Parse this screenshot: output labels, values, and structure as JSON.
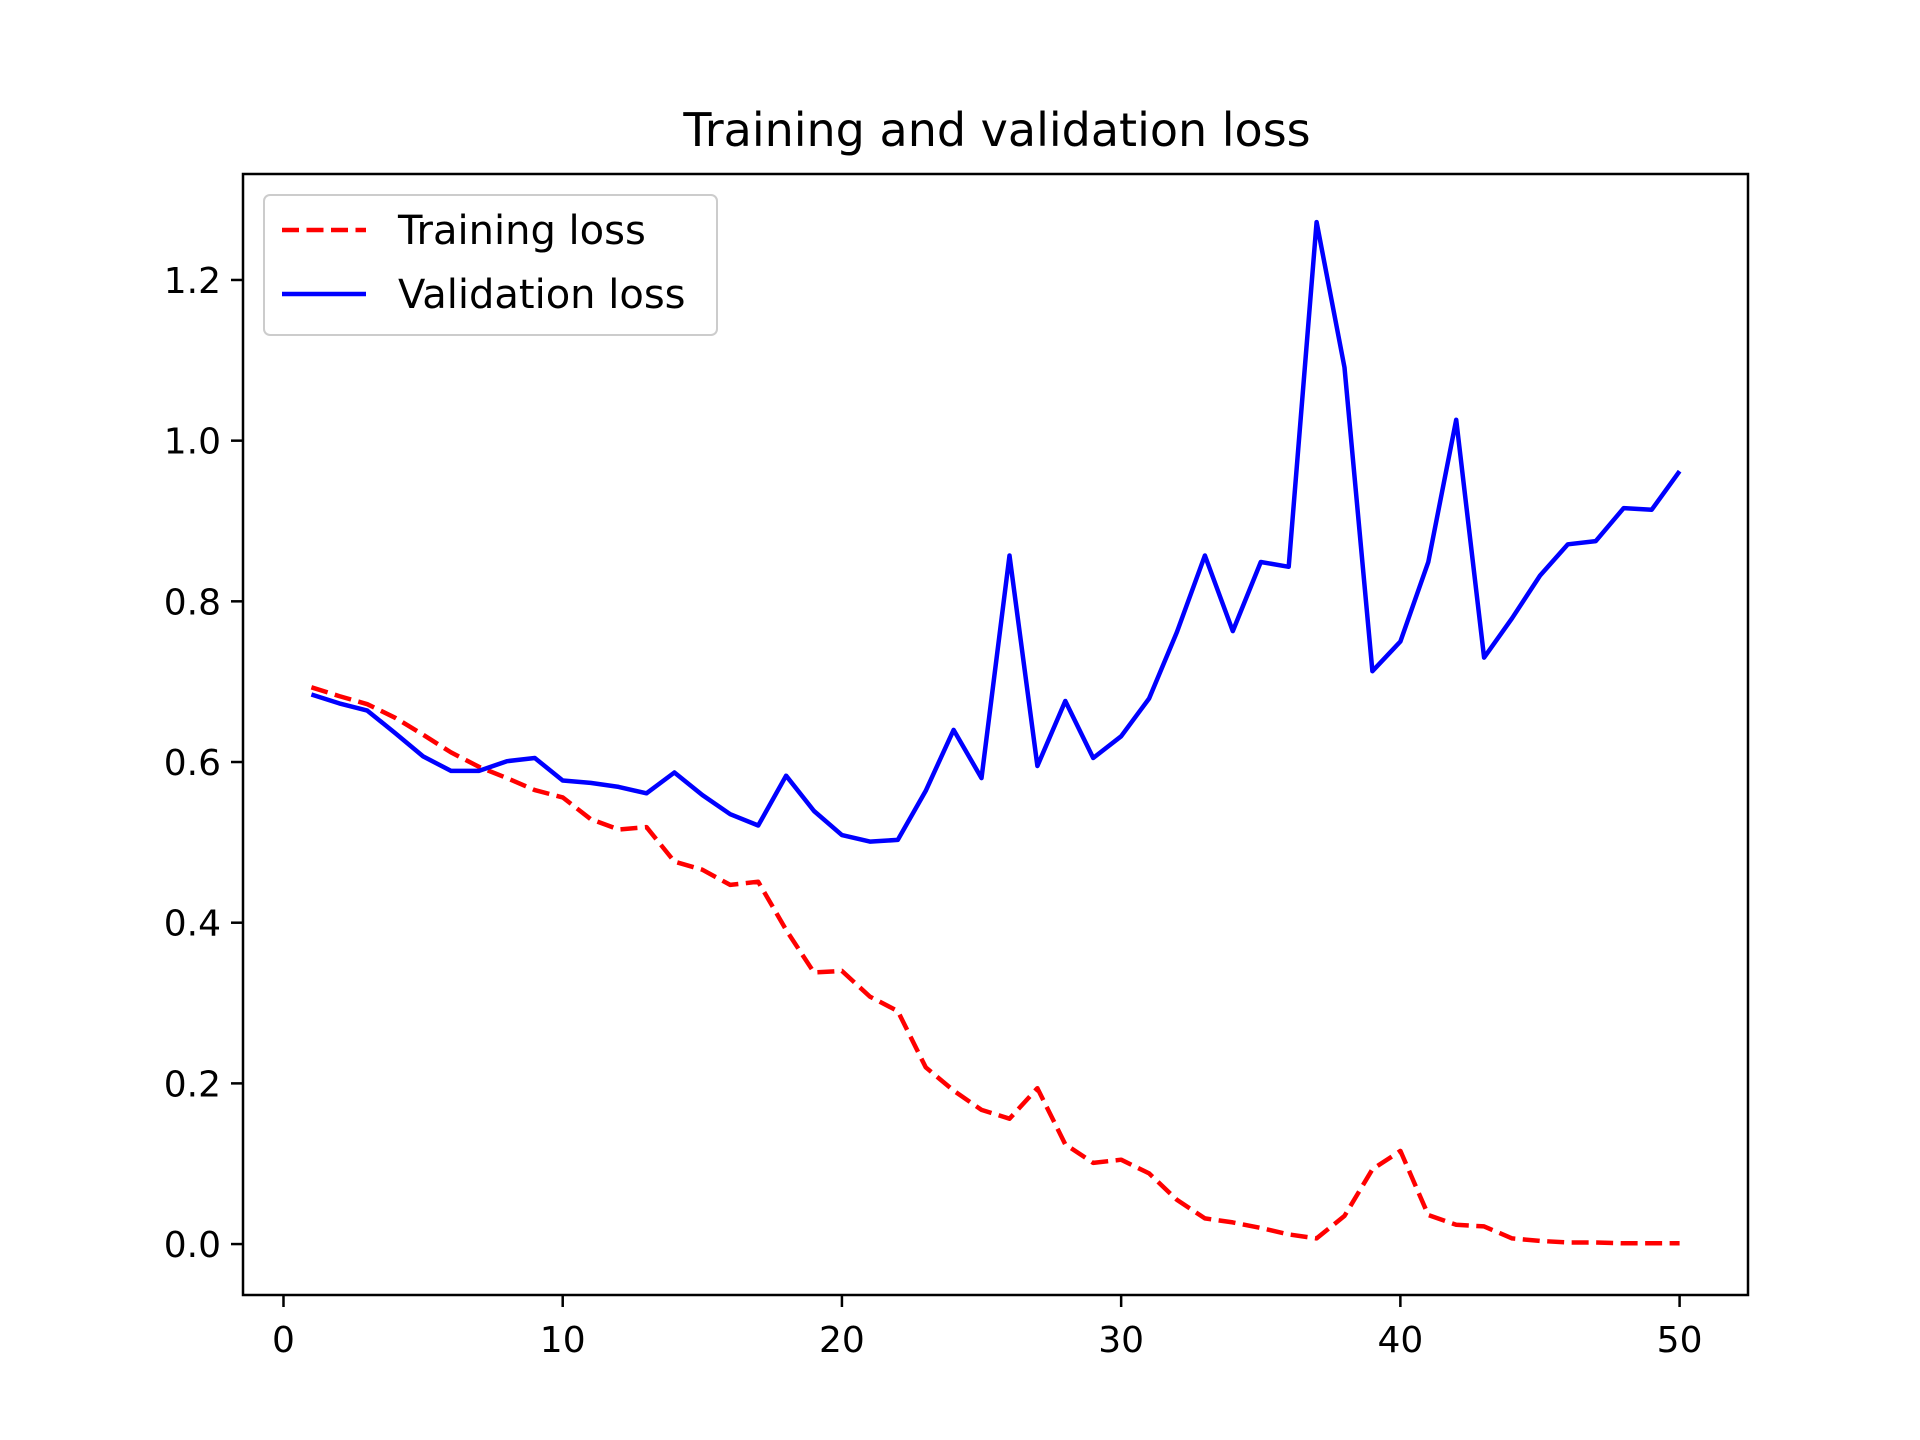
{
  "chart_data": {
    "type": "line",
    "title": "Training and validation loss",
    "xlabel": "",
    "ylabel": "",
    "xlim": [
      -1.45,
      52.45
    ],
    "ylim": [
      -0.0634,
      1.3319
    ],
    "xticks": [
      0,
      10,
      20,
      30,
      40,
      50
    ],
    "yticks": [
      0.0,
      0.2,
      0.4,
      0.6,
      0.8,
      1.0,
      1.2
    ],
    "xtick_labels": [
      "0",
      "10",
      "20",
      "30",
      "40",
      "50"
    ],
    "ytick_labels": [
      "0.0",
      "0.2",
      "0.4",
      "0.6",
      "0.8",
      "1.0",
      "1.2"
    ],
    "grid": false,
    "legend_location": "upper-left",
    "x": [
      1,
      2,
      3,
      4,
      5,
      6,
      7,
      8,
      9,
      10,
      11,
      12,
      13,
      14,
      15,
      16,
      17,
      18,
      19,
      20,
      21,
      22,
      23,
      24,
      25,
      26,
      27,
      28,
      29,
      30,
      31,
      32,
      33,
      34,
      35,
      36,
      37,
      38,
      39,
      40,
      41,
      42,
      43,
      44,
      45,
      46,
      47,
      48,
      49,
      50
    ],
    "series": [
      {
        "name": "Training loss",
        "color": "#ff0000",
        "style": "dashed",
        "values": [
          0.693,
          0.682,
          0.672,
          0.655,
          0.634,
          0.612,
          0.594,
          0.58,
          0.565,
          0.556,
          0.529,
          0.516,
          0.519,
          0.476,
          0.466,
          0.447,
          0.451,
          0.391,
          0.338,
          0.34,
          0.308,
          0.29,
          0.22,
          0.191,
          0.167,
          0.156,
          0.194,
          0.124,
          0.101,
          0.105,
          0.088,
          0.055,
          0.032,
          0.027,
          0.02,
          0.012,
          0.007,
          0.035,
          0.093,
          0.116,
          0.036,
          0.024,
          0.022,
          0.007,
          0.004,
          0.002,
          0.002,
          0.001,
          0.001,
          0.001
        ]
      },
      {
        "name": "Validation loss",
        "color": "#0000ff",
        "style": "solid",
        "values": [
          0.684,
          0.673,
          0.664,
          0.636,
          0.607,
          0.589,
          0.589,
          0.601,
          0.605,
          0.577,
          0.574,
          0.569,
          0.561,
          0.587,
          0.559,
          0.535,
          0.521,
          0.583,
          0.539,
          0.509,
          0.501,
          0.503,
          0.564,
          0.64,
          0.58,
          0.857,
          0.595,
          0.676,
          0.605,
          0.632,
          0.679,
          0.762,
          0.857,
          0.763,
          0.849,
          0.843,
          1.272,
          1.091,
          0.713,
          0.75,
          0.849,
          1.026,
          0.73,
          0.779,
          0.832,
          0.871,
          0.875,
          0.916,
          0.914,
          0.962
        ]
      }
    ]
  }
}
